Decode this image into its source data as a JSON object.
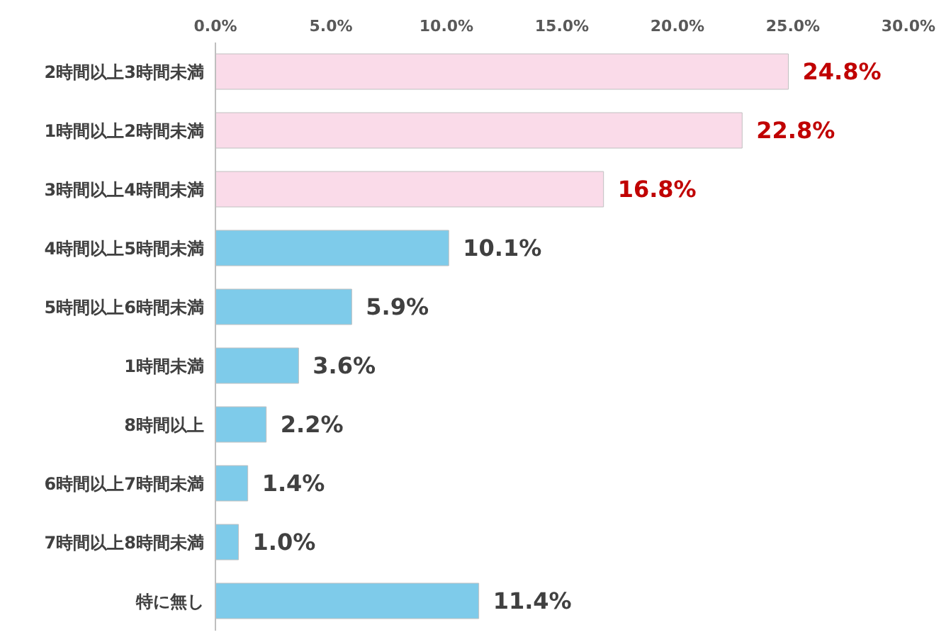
{
  "chart_data": {
    "type": "bar",
    "orientation": "horizontal",
    "categories": [
      "2時間以上3時間未満",
      "1時間以上2時間未満",
      "3時間以上4時間未満",
      "4時間以上5時間未満",
      "5時間以上6時間未満",
      "1時間未満",
      "8時間以上",
      "6時間以上7時間未満",
      "7時間以上8時間未満",
      "特に無し"
    ],
    "values": [
      24.8,
      22.8,
      16.8,
      10.1,
      5.9,
      3.6,
      2.2,
      1.4,
      1.0,
      11.4
    ],
    "value_labels": [
      "24.8%",
      "22.8%",
      "16.8%",
      "10.1%",
      "5.9%",
      "3.6%",
      "2.2%",
      "1.4%",
      "1.0%",
      "11.4%"
    ],
    "colors": [
      "#fadbe9",
      "#fadbe9",
      "#fadbe9",
      "#7ecbea",
      "#7ecbea",
      "#7ecbea",
      "#7ecbea",
      "#7ecbea",
      "#7ecbea",
      "#7ecbea"
    ],
    "xlim": [
      0,
      30
    ],
    "xticks": [
      {
        "value": 0,
        "label": "0.0%"
      },
      {
        "value": 5,
        "label": "5.0%"
      },
      {
        "value": 10,
        "label": "10.0%"
      },
      {
        "value": 15,
        "label": "15.0%"
      },
      {
        "value": 20,
        "label": "20.0%"
      },
      {
        "value": 25,
        "label": "25.0%"
      },
      {
        "value": 30,
        "label": "30.0%"
      }
    ],
    "grid": false,
    "legend": false
  }
}
